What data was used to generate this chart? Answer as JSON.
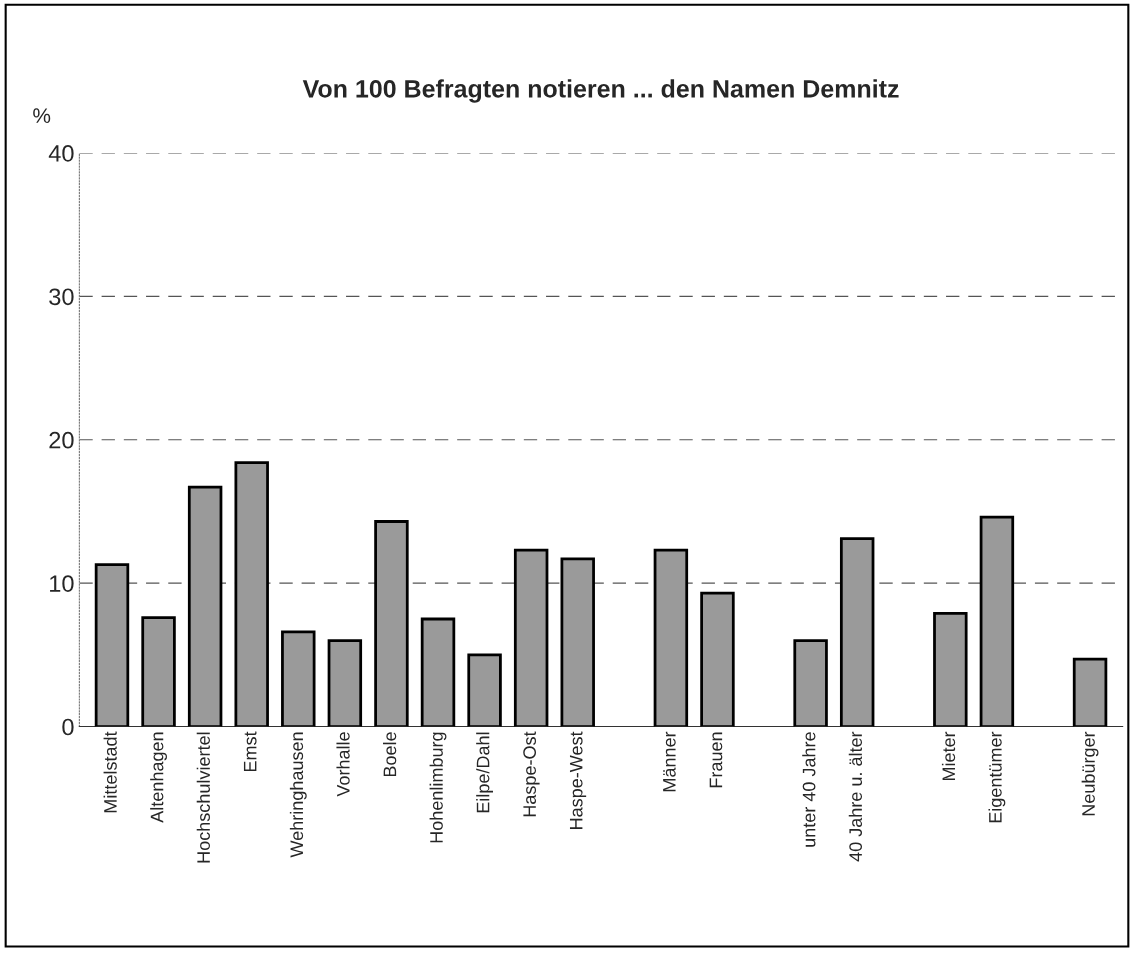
{
  "chart_data": {
    "type": "bar",
    "title": "Von 100 Befragten notieren ... den Namen Demnitz",
    "ylabel": "%",
    "categories": [
      "Mittelstadt",
      "Altenhagen",
      "Hochschulviertel",
      "Emst",
      "Wehringhausen",
      "Vorhalle",
      "Boele",
      "Hohenlimburg",
      "Eilpe/Dahl",
      "Haspe-Ost",
      "Haspe-West",
      null,
      "Männer",
      "Frauen",
      null,
      "unter 40 Jahre",
      "40 Jahre u. älter",
      null,
      "Mieter",
      "Eigentümer",
      null,
      "Neubürger"
    ],
    "values": [
      11.3,
      7.6,
      16.7,
      18.4,
      6.6,
      6.0,
      14.3,
      7.5,
      5.0,
      12.3,
      11.7,
      null,
      12.3,
      9.3,
      null,
      6.0,
      13.1,
      null,
      7.9,
      14.6,
      null,
      4.7
    ],
    "color": "#9a9a9a",
    "ylim": [
      0,
      40
    ],
    "yticks": [
      0,
      10,
      20,
      30,
      40
    ],
    "grid": "y"
  }
}
